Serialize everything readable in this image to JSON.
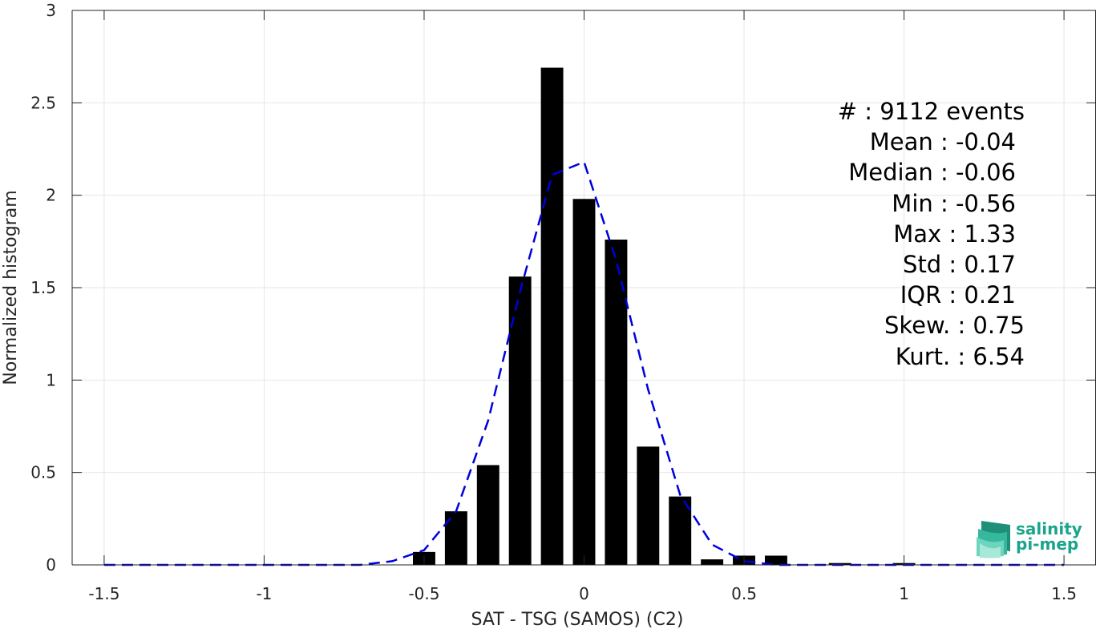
{
  "chart_data": {
    "type": "bar",
    "xlabel": "SAT - TSG (SAMOS) (C2)",
    "ylabel": "Normalized histogram",
    "xlim": [
      -1.6,
      1.6
    ],
    "ylim": [
      0,
      3
    ],
    "xticks": [
      "-1.5",
      "-1",
      "-0.5",
      "0",
      "0.5",
      "1",
      "1.5"
    ],
    "xtick_values": [
      -1.5,
      -1,
      -0.5,
      0,
      0.5,
      1,
      1.5
    ],
    "yticks": [
      "0",
      "0.5",
      "1",
      "1.5",
      "2",
      "2.5",
      "3"
    ],
    "ytick_values": [
      0,
      0.5,
      1,
      1.5,
      2,
      2.5,
      3
    ],
    "grid": true,
    "bar_width": 0.07,
    "bars": {
      "x": [
        -0.5,
        -0.4,
        -0.3,
        -0.2,
        -0.1,
        0.0,
        0.1,
        0.2,
        0.3,
        0.4,
        0.5,
        0.6,
        0.8,
        1.0
      ],
      "values": [
        0.07,
        0.29,
        0.54,
        1.56,
        2.69,
        1.98,
        1.76,
        0.64,
        0.37,
        0.03,
        0.05,
        0.05,
        0.01,
        0.01
      ],
      "color": "#000000"
    },
    "fit_line": {
      "x": [
        -1.5,
        -1.4,
        -1.3,
        -1.2,
        -1.1,
        -1.0,
        -0.9,
        -0.8,
        -0.7,
        -0.6,
        -0.5,
        -0.4,
        -0.3,
        -0.2,
        -0.1,
        0.0,
        0.1,
        0.2,
        0.3,
        0.4,
        0.5,
        0.6,
        0.7,
        0.8,
        0.9,
        1.0,
        1.1,
        1.2,
        1.3,
        1.4,
        1.5
      ],
      "values": [
        0,
        0,
        0,
        0,
        0,
        0,
        0,
        0,
        0,
        0.02,
        0.08,
        0.29,
        0.78,
        1.48,
        2.11,
        2.18,
        1.65,
        0.95,
        0.38,
        0.11,
        0.02,
        0,
        0,
        0,
        0,
        0,
        0,
        0,
        0,
        0,
        0
      ],
      "color": "#0000dd",
      "style": "dashed"
    },
    "legend": "none"
  },
  "stats": {
    "count": "#  : 9112 events",
    "mean": "Mean : -0.04",
    "median": "Median : -0.06",
    "min": "Min : -0.56",
    "max": "Max : 1.33",
    "std": "Std : 0.17",
    "iqr": "IQR : 0.21",
    "skew": "Skew. : 0.75",
    "kurt": "Kurt. : 6.54"
  },
  "logo": {
    "line1": "salinity",
    "line2": "pi-mep",
    "color": "#1aa58a"
  }
}
